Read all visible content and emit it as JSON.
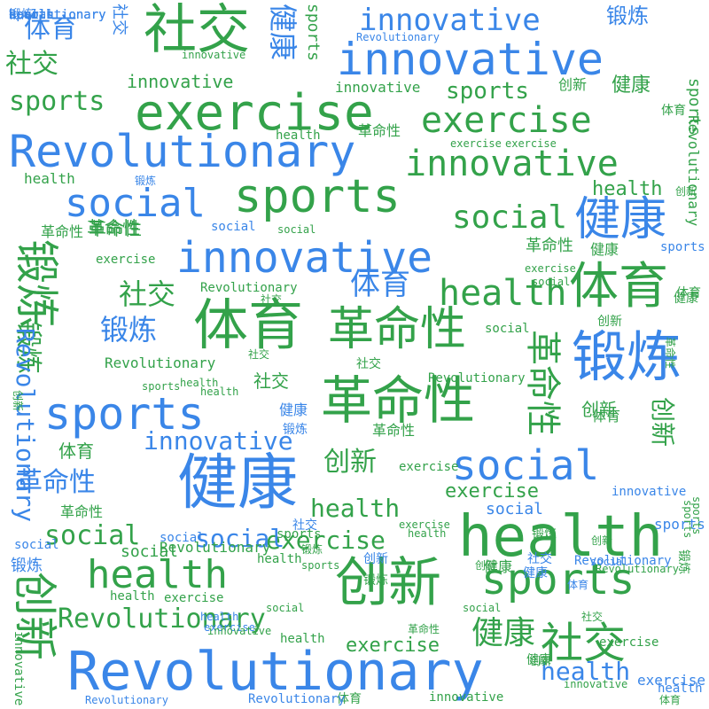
{
  "palette": [
    "#3a86e8",
    "#33a24a"
  ],
  "words": [
    {
      "text": "社交"
    },
    {
      "text": "innovative"
    },
    {
      "text": "exercise"
    },
    {
      "text": "Revolutionary"
    },
    {
      "text": "sports"
    },
    {
      "text": "innovative"
    },
    {
      "text": "健康"
    },
    {
      "text": "social"
    },
    {
      "text": "innovative"
    },
    {
      "text": "体育"
    },
    {
      "text": "锻炼"
    },
    {
      "text": "革命性"
    },
    {
      "text": "体育"
    },
    {
      "text": "革命性"
    },
    {
      "text": "锻炼"
    },
    {
      "text": "sports"
    },
    {
      "text": "健康"
    },
    {
      "text": "social"
    },
    {
      "text": "创新"
    },
    {
      "text": "health"
    },
    {
      "text": "Revolutionary"
    },
    {
      "text": "创新"
    },
    {
      "text": "sports"
    },
    {
      "text": "health"
    },
    {
      "text": "社交"
    },
    {
      "text": "健康"
    },
    {
      "text": "exercise"
    },
    {
      "text": "health"
    },
    {
      "text": "social"
    },
    {
      "text": "革命性"
    },
    {
      "text": "体育"
    },
    {
      "text": "社交"
    },
    {
      "text": "innovative"
    },
    {
      "text": "锻炼"
    },
    {
      "text": "社交"
    },
    {
      "text": "健康"
    },
    {
      "text": "sports"
    },
    {
      "text": "innovative"
    },
    {
      "text": "锻炼"
    },
    {
      "text": "sports"
    },
    {
      "text": "exercise"
    },
    {
      "text": "Revolutionary"
    },
    {
      "text": "health"
    },
    {
      "text": "Revolutionary"
    },
    {
      "text": "innovative"
    },
    {
      "text": "social"
    },
    {
      "text": "创新"
    },
    {
      "text": "革命性"
    },
    {
      "text": "创新"
    },
    {
      "text": "sports"
    },
    {
      "text": "social"
    },
    {
      "text": "exercise"
    },
    {
      "text": "health"
    },
    {
      "text": "体育"
    },
    {
      "text": "社交"
    },
    {
      "text": "体育"
    },
    {
      "text": "革命性"
    },
    {
      "text": "创新"
    },
    {
      "text": "锻炼"
    },
    {
      "text": "革命性"
    },
    {
      "text": "health"
    },
    {
      "text": "social"
    },
    {
      "text": "Revolutionary"
    },
    {
      "text": "Revolutionary"
    },
    {
      "text": "exercise"
    },
    {
      "text": "exercise"
    },
    {
      "text": "Revolutionary"
    },
    {
      "text": "锻炼"
    },
    {
      "text": "health"
    },
    {
      "text": "Revolutionary"
    },
    {
      "text": "health"
    },
    {
      "text": "sports"
    },
    {
      "text": "innovative"
    },
    {
      "text": "革命性"
    },
    {
      "text": "social"
    },
    {
      "text": "健康"
    },
    {
      "text": "sports"
    },
    {
      "text": "exercise"
    },
    {
      "text": "创新"
    },
    {
      "text": "health"
    },
    {
      "text": "social"
    },
    {
      "text": "锻炼"
    },
    {
      "text": "社交"
    },
    {
      "text": "健康"
    },
    {
      "text": "health"
    },
    {
      "text": "体育"
    },
    {
      "text": "创新"
    },
    {
      "text": "exercise"
    },
    {
      "text": "social"
    },
    {
      "text": "exercise"
    },
    {
      "text": "革命性"
    },
    {
      "text": "exercise"
    },
    {
      "text": "社交"
    },
    {
      "text": "social"
    },
    {
      "text": "革命性"
    },
    {
      "text": "Revolutionary"
    },
    {
      "text": "innovative"
    },
    {
      "text": "锻炼"
    },
    {
      "text": "社交"
    },
    {
      "text": "体育"
    },
    {
      "text": "social"
    },
    {
      "text": "创新"
    },
    {
      "text": "健康"
    },
    {
      "text": "sports"
    },
    {
      "text": "health"
    },
    {
      "text": "innovative"
    },
    {
      "text": "社交"
    },
    {
      "text": "innovative"
    },
    {
      "text": "Revolutionary"
    },
    {
      "text": "exercise"
    },
    {
      "text": "锻炼"
    },
    {
      "text": "innovative"
    },
    {
      "text": "health"
    },
    {
      "text": "创新"
    },
    {
      "text": "革命性"
    },
    {
      "text": "health"
    },
    {
      "text": "sports"
    },
    {
      "text": "创新"
    },
    {
      "text": "健康"
    },
    {
      "text": "体育"
    },
    {
      "text": "health"
    },
    {
      "text": "社交"
    },
    {
      "text": "social"
    },
    {
      "text": "锻炼"
    },
    {
      "text": "创新"
    },
    {
      "text": "革命性"
    },
    {
      "text": "sports"
    },
    {
      "text": "social"
    },
    {
      "text": "exercise"
    },
    {
      "text": "健康"
    },
    {
      "text": "锻炼"
    },
    {
      "text": "社交"
    },
    {
      "text": "体育"
    },
    {
      "text": "健康"
    },
    {
      "text": "创新"
    },
    {
      "text": "sports"
    },
    {
      "text": "health"
    },
    {
      "text": "Revolutionary"
    },
    {
      "text": "social"
    },
    {
      "text": "Revolutionary"
    },
    {
      "text": "innovative"
    },
    {
      "text": "exercise"
    },
    {
      "text": "health"
    },
    {
      "text": "sports"
    },
    {
      "text": "social"
    },
    {
      "text": "创新"
    },
    {
      "text": "社交"
    },
    {
      "text": "体育"
    },
    {
      "text": "Revolutionary"
    },
    {
      "text": "exercise"
    },
    {
      "text": "sports"
    },
    {
      "text": "锻炼"
    },
    {
      "text": "健康"
    },
    {
      "text": "体育"
    },
    {
      "text": "革命性"
    },
    {
      "text": "Revolutionary"
    },
    {
      "text": "social"
    },
    {
      "text": "exercise"
    },
    {
      "text": "innovative"
    },
    {
      "text": "革命性"
    },
    {
      "text": "Revolutionary"
    },
    {
      "text": "health"
    },
    {
      "text": "health"
    },
    {
      "text": "sports"
    },
    {
      "text": "锻炼"
    },
    {
      "text": "sports"
    },
    {
      "text": "social"
    },
    {
      "text": "Revolutionary"
    },
    {
      "text": "Revolutionary"
    }
  ]
}
